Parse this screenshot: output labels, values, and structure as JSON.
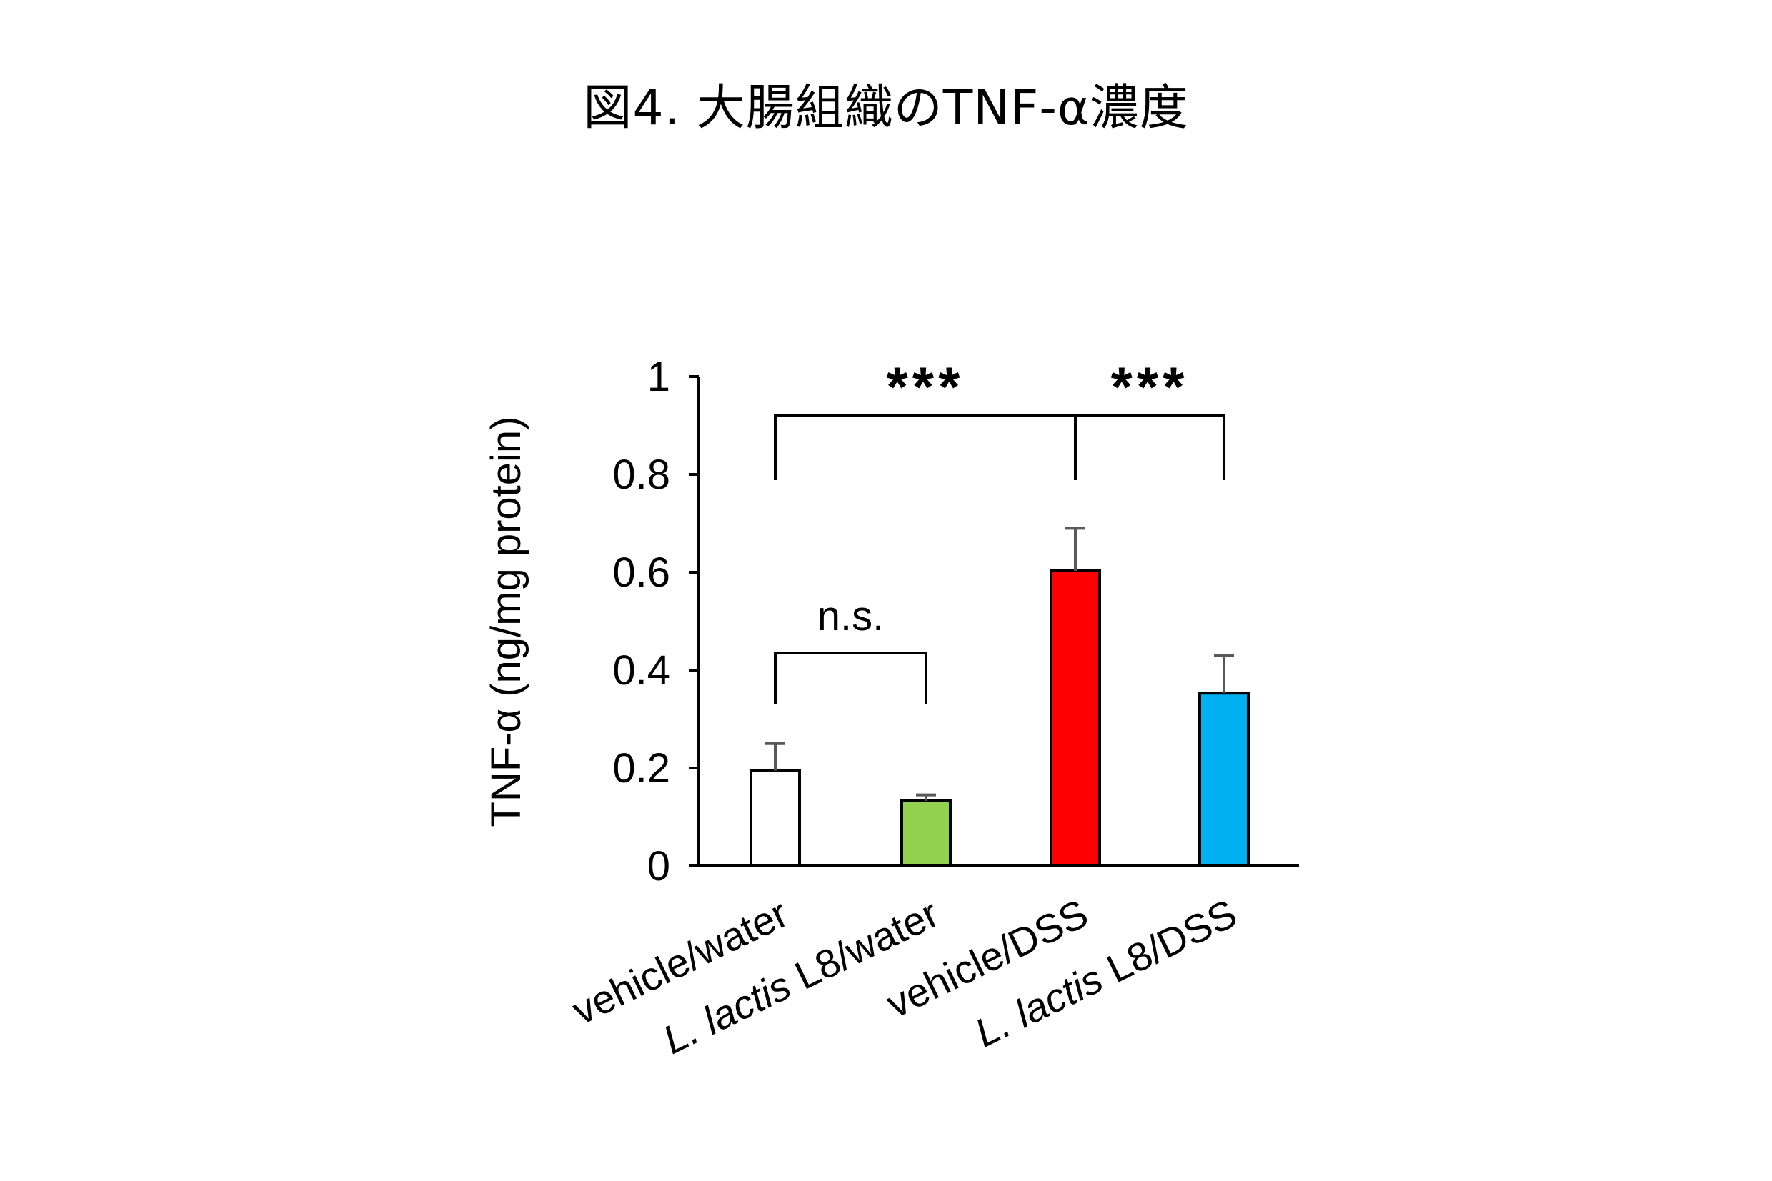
{
  "figure": {
    "title": "図4. 大腸組織のTNF-α濃度"
  },
  "chart_data": {
    "type": "bar",
    "ylabel": "TNF-α  (ng/mg protein)",
    "xlabel": "",
    "ylim": [
      0,
      1
    ],
    "yticks": [
      {
        "value": 0,
        "label": "0"
      },
      {
        "value": 0.2,
        "label": "0.2"
      },
      {
        "value": 0.4,
        "label": "0.4"
      },
      {
        "value": 0.6,
        "label": "0.6"
      },
      {
        "value": 0.8,
        "label": "0.8"
      },
      {
        "value": 1,
        "label": "1"
      }
    ],
    "grid": false,
    "categories": [
      {
        "key": "vehicle-water",
        "plain_before": "vehicle/water",
        "italic": "",
        "plain_after": ""
      },
      {
        "key": "lactis-water",
        "plain_before": "",
        "italic": "L. lactis",
        "plain_after": " L8/water"
      },
      {
        "key": "vehicle-dss",
        "plain_before": "vehicle/DSS",
        "italic": "",
        "plain_after": ""
      },
      {
        "key": "lactis-dss",
        "plain_before": "",
        "italic": "L. lactis",
        "plain_after": " L8/DSS"
      }
    ],
    "values": [
      0.195,
      0.133,
      0.603,
      0.353
    ],
    "errors": [
      0.055,
      0.012,
      0.087,
      0.077
    ],
    "colors": [
      "#ffffff",
      "#92d050",
      "#ff0000",
      "#00b0f0"
    ],
    "edge_color": "#000000",
    "error_color": "#595959",
    "significance": [
      {
        "label": "n.s.",
        "from": 0,
        "to": 1
      },
      {
        "label": "***",
        "from": 0,
        "to": 2
      },
      {
        "label": "***",
        "from": 2,
        "to": 3
      }
    ]
  }
}
